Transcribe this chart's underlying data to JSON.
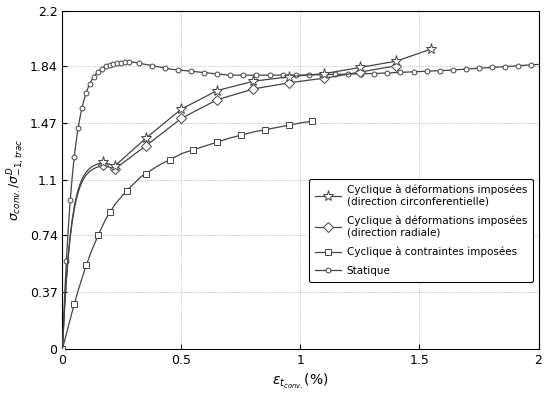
{
  "title": "",
  "xlabel": "$\\varepsilon_{t_{conv.}}(\\%)$",
  "ylabel": "$\\sigma_{conv.}/\\sigma^{D}_{-1,trac}$",
  "xlim": [
    0,
    2
  ],
  "ylim": [
    0,
    2.2
  ],
  "xticks": [
    0,
    0.5,
    1,
    1.5,
    2
  ],
  "yticks": [
    0,
    0.37,
    0.74,
    1.1,
    1.47,
    1.84,
    2.2
  ],
  "line_color": "#444444",
  "background": "#ffffff",
  "legend_labels": [
    "Cyclique à déformations imposées\n(direction circonferentielle)",
    "Cyclique à déformations imposées\n(direction radiale)",
    "Cyclique à contraintes imposées",
    "Statique"
  ]
}
